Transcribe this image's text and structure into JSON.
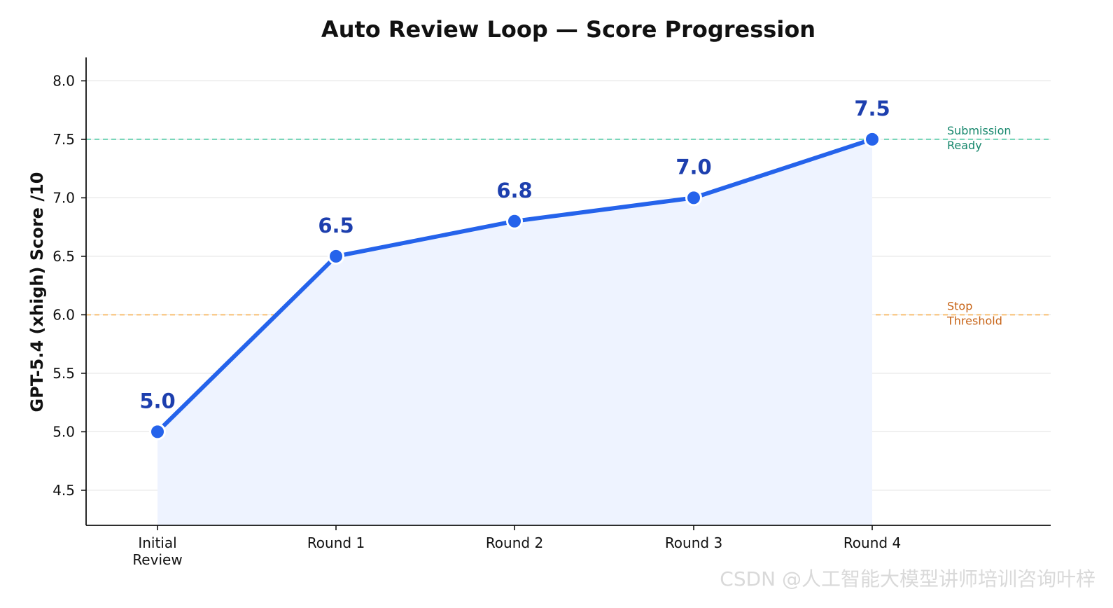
{
  "chart_data": {
    "type": "line",
    "title": "Auto Review Loop — Score Progression",
    "ylabel": "GPT-5.4 (xhigh) Score  /10",
    "categories": [
      "Initial\nReview",
      "Round 1",
      "Round 2",
      "Round 3",
      "Round 4"
    ],
    "values": [
      5.0,
      6.5,
      6.8,
      7.0,
      7.5
    ],
    "data_labels": [
      "5.0",
      "6.5",
      "6.8",
      "7.0",
      "7.5"
    ],
    "ylim": [
      4.2,
      8.2
    ],
    "y_ticks": [
      4.5,
      5.0,
      5.5,
      6.0,
      6.5,
      7.0,
      7.5,
      8.0
    ],
    "y_tick_labels": [
      "4.5",
      "5.0",
      "5.5",
      "6.0",
      "6.5",
      "7.0",
      "7.5",
      "8.0"
    ],
    "reference_lines": [
      {
        "label": "Submission\nReady",
        "value": 7.5,
        "color": "#6fd3b4",
        "text_color": "#15866b"
      },
      {
        "label": "Stop\nThreshold",
        "value": 6.0,
        "color": "#f7bf72",
        "text_color": "#c76316"
      }
    ],
    "grid": true,
    "line_color": "#2563eb",
    "fill_color": "#eef3ff",
    "point_label_color": "#1d3fae"
  },
  "watermark": "CSDN @人工智能大模型讲师培训咨询叶梓"
}
